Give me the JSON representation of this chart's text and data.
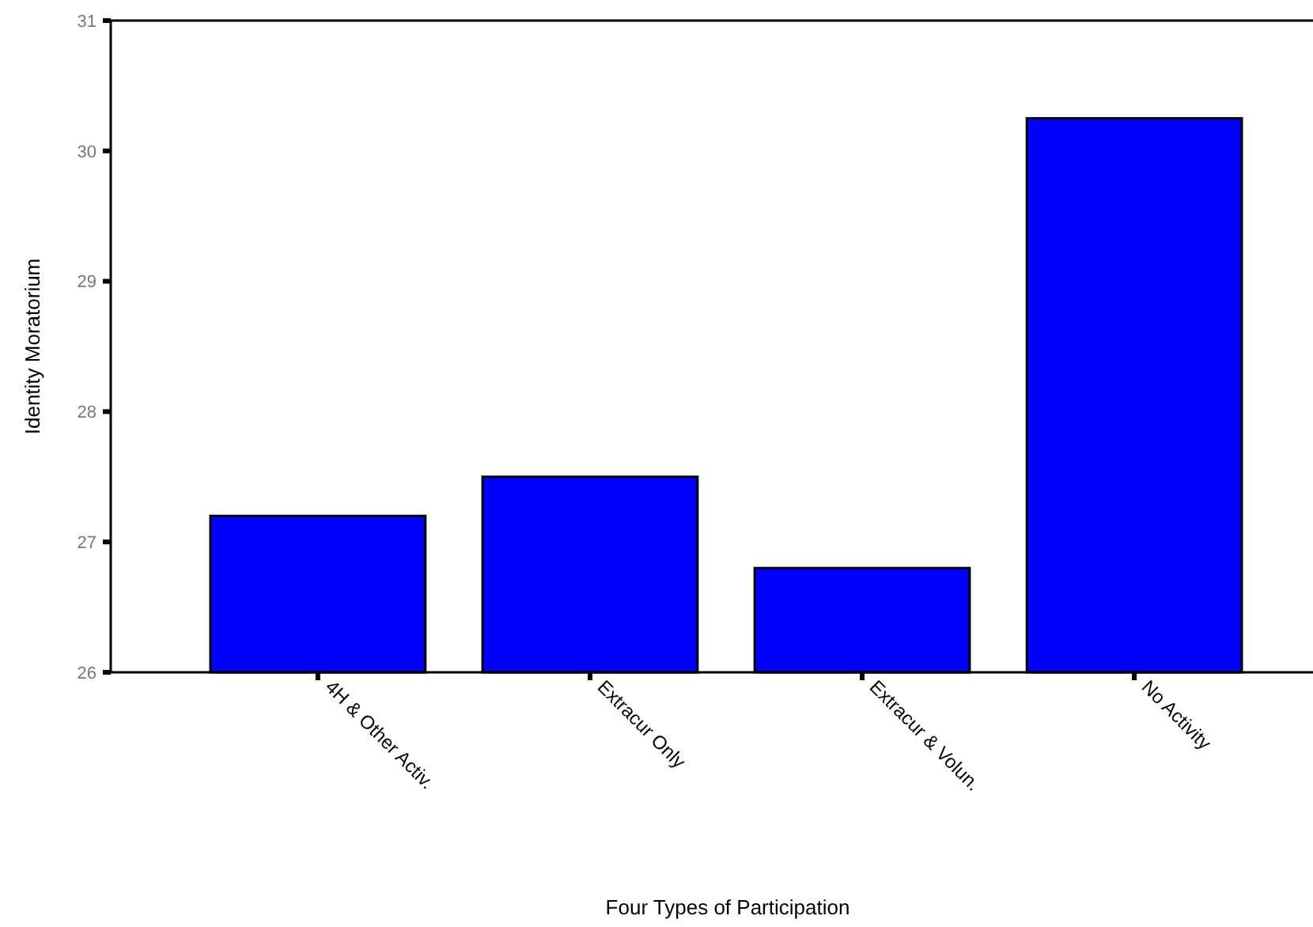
{
  "chart_data": {
    "type": "bar",
    "xlabel": "Four Types of Participation",
    "ylabel": "Identity Moratorium",
    "categories": [
      "4H & Other Activ.",
      "Extracur Only",
      "Extracur & Volun.",
      "No Activity"
    ],
    "values": [
      27.2,
      27.5,
      26.8,
      30.25
    ],
    "color": "#0000ff",
    "ylim": [
      26,
      31
    ],
    "yticks": [
      26,
      27,
      28,
      29,
      30,
      31
    ],
    "grid": false
  }
}
